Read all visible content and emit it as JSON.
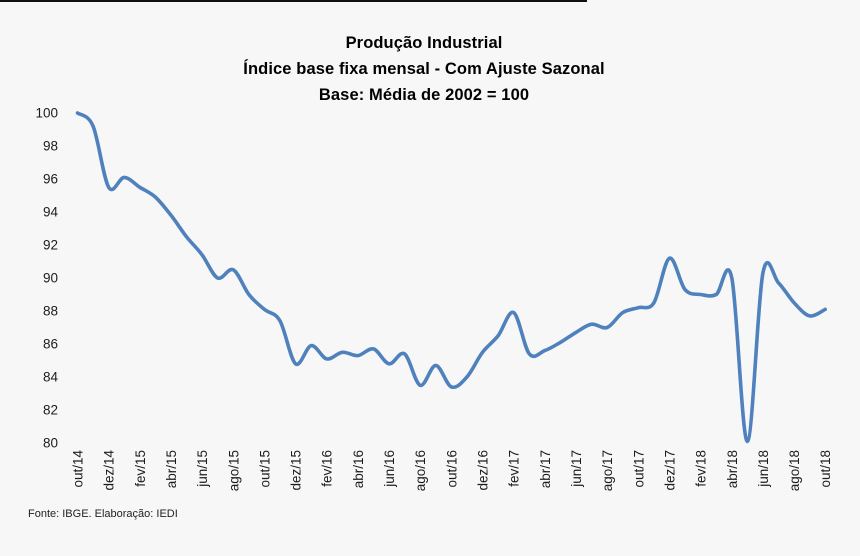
{
  "page": {
    "background_color": "#f7f7f7",
    "footer": "Fonte: IBGE. Elaboração: IEDI"
  },
  "chart": {
    "title_lines": [
      "Produção Industrial",
      "Índice base fixa mensal - Com Ajuste Sazonal",
      "Base: Média de 2002 = 100"
    ],
    "line_color": "#4F81BD",
    "tick_text_color": "#1c1c1c"
  },
  "chart_data": {
    "type": "line",
    "title": "Produção Industrial — Índice base fixa mensal - Com Ajuste Sazonal — Base: Média de 2002 = 100",
    "xlabel": "",
    "ylabel": "",
    "ylim": [
      80,
      100
    ],
    "grid": false,
    "legend": null,
    "smooth": true,
    "x": [
      "out/14",
      "nov/14",
      "dez/14",
      "jan/15",
      "fev/15",
      "mar/15",
      "abr/15",
      "mai/15",
      "jun/15",
      "jul/15",
      "ago/15",
      "set/15",
      "out/15",
      "nov/15",
      "dez/15",
      "jan/16",
      "fev/16",
      "mar/16",
      "abr/16",
      "mai/16",
      "jun/16",
      "jul/16",
      "ago/16",
      "set/16",
      "out/16",
      "nov/16",
      "dez/16",
      "jan/17",
      "fev/17",
      "mar/17",
      "abr/17",
      "mai/17",
      "jun/17",
      "jul/17",
      "ago/17",
      "set/17",
      "out/17",
      "nov/17",
      "dez/17",
      "jan/18",
      "fev/18",
      "mar/18",
      "abr/18",
      "mai/18",
      "jun/18",
      "jul/18",
      "ago/18",
      "set/18",
      "out/18"
    ],
    "values": [
      100.0,
      99.2,
      95.5,
      96.1,
      95.5,
      94.9,
      93.8,
      92.5,
      91.4,
      90.0,
      90.5,
      89.0,
      88.1,
      87.4,
      84.8,
      85.9,
      85.1,
      85.5,
      85.3,
      85.7,
      84.8,
      85.4,
      83.5,
      84.7,
      83.4,
      84.0,
      85.5,
      86.5,
      87.9,
      85.4,
      85.6,
      86.1,
      86.7,
      87.2,
      87.0,
      87.9,
      88.2,
      88.5,
      91.2,
      89.3,
      89.0,
      89.0,
      90.0,
      80.1,
      90.3,
      89.7,
      88.5,
      87.7,
      88.1
    ],
    "x_tick_labels": [
      "out/14",
      "dez/14",
      "fev/15",
      "abr/15",
      "jun/15",
      "ago/15",
      "out/15",
      "dez/15",
      "fev/16",
      "abr/16",
      "jun/16",
      "ago/16",
      "out/16",
      "dez/16",
      "fev/17",
      "abr/17",
      "jun/17",
      "ago/17",
      "out/17",
      "dez/17",
      "fev/18",
      "abr/18",
      "jun/18",
      "ago/18",
      "out/18"
    ],
    "y_ticks": [
      100,
      98,
      96,
      94,
      92,
      90,
      88,
      86,
      84,
      82,
      80
    ]
  }
}
